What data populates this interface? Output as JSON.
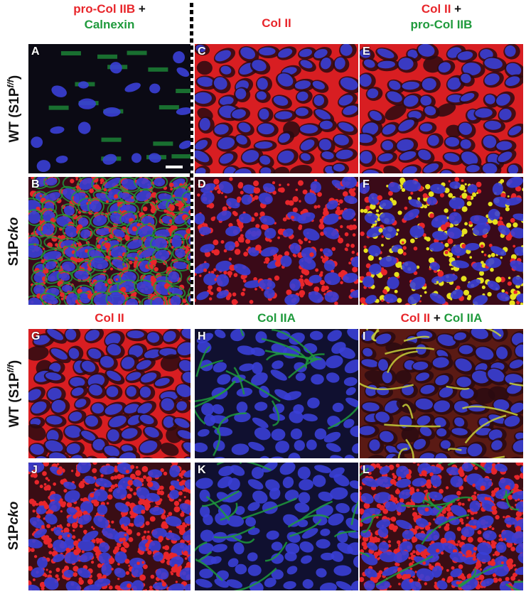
{
  "headers_top": {
    "col1_part1": "pro-Col IIB",
    "col1_plus": "+",
    "col1_part2": "Calnexin",
    "col2": "Col II",
    "col3_part1": "Col II",
    "col3_plus": "+",
    "col3_part2": "pro-Col IIB"
  },
  "headers_bottom": {
    "col1": "Col II",
    "col2": "Col IIA",
    "col3_part1": "Col II",
    "col3_plus": "+",
    "col3_part2": "Col IIA"
  },
  "row_labels": {
    "wt_prefix": "WT (S1P",
    "wt_sup": "f/f",
    "wt_suffix": ")",
    "cko_prefix": "S1P",
    "cko_italic": "cko"
  },
  "panels": [
    "A",
    "B",
    "C",
    "D",
    "E",
    "F",
    "G",
    "H",
    "I",
    "J",
    "K",
    "L"
  ],
  "colors": {
    "red_stain": "#e8262b",
    "green_stain": "#1f9a3c",
    "nuclei_blue": "#3a3fd6",
    "yellow_overlap": "#e6e21f"
  }
}
